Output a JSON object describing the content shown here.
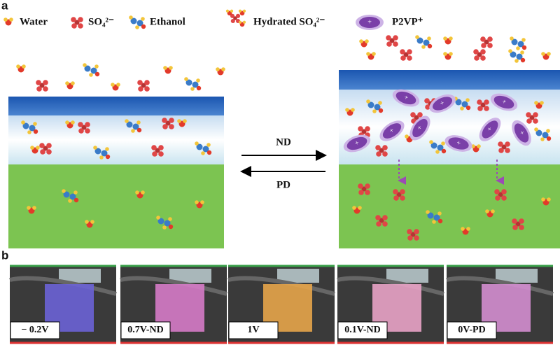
{
  "panels": {
    "a": {
      "label": "a",
      "legend": [
        "Water",
        "SO₄²⁻",
        "Ethanol",
        "Hydrated SO₄²⁻",
        "P2VP⁺"
      ],
      "arrows": {
        "forward": "ND",
        "backward": "PD"
      }
    },
    "b": {
      "label": "b",
      "photos": [
        "− 0.2V",
        "0.7V-ND",
        "1V",
        "0.1V-ND",
        "0V-PD"
      ]
    }
  }
}
